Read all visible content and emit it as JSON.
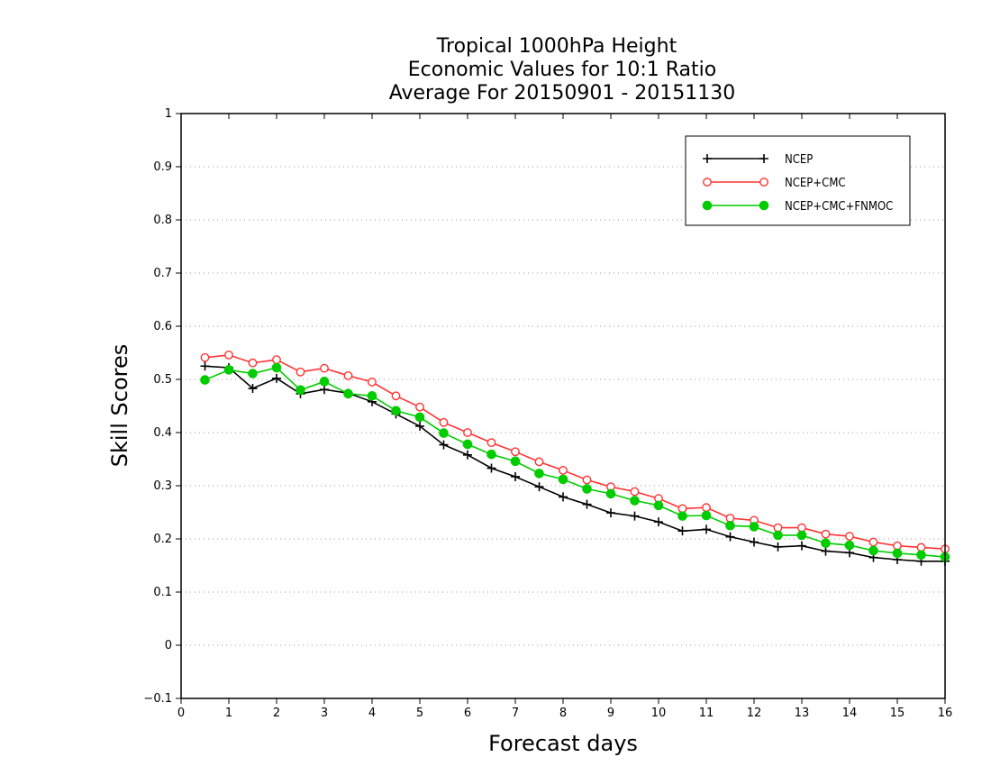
{
  "chart_data": {
    "type": "line",
    "title_lines": [
      "Tropical 1000hPa Height",
      "Economic Values for 10:1 Ratio",
      "Average For 20150901 - 20151130"
    ],
    "xlabel": "Forecast days",
    "ylabel": "Skill Scores",
    "xlim": [
      0,
      16
    ],
    "ylim": [
      -0.1,
      1
    ],
    "xticks": [
      "0",
      "1",
      "2",
      "3",
      "4",
      "5",
      "6",
      "7",
      "8",
      "9",
      "10",
      "11",
      "12",
      "13",
      "14",
      "15",
      "16"
    ],
    "yticks": [
      "-0.1",
      "0",
      "0.1",
      "0.2",
      "0.3",
      "0.4",
      "0.5",
      "0.6",
      "0.7",
      "0.8",
      "0.9",
      "1"
    ],
    "grid": "horizontal dotted",
    "legend_position": "top-right",
    "x": [
      0.5,
      1,
      1.5,
      2,
      2.5,
      3,
      3.5,
      4,
      4.5,
      5,
      5.5,
      6,
      6.5,
      7,
      7.5,
      8,
      8.5,
      9,
      9.5,
      10,
      10.5,
      11,
      11.5,
      12,
      12.5,
      13,
      13.5,
      14,
      14.5,
      15,
      15.5,
      16
    ],
    "series": [
      {
        "name": "NCEP",
        "color": "#000000",
        "marker": "plus",
        "values": [
          0.525,
          0.522,
          0.483,
          0.502,
          0.473,
          0.481,
          0.474,
          0.458,
          0.435,
          0.412,
          0.377,
          0.358,
          0.333,
          0.317,
          0.298,
          0.279,
          0.265,
          0.249,
          0.243,
          0.232,
          0.215,
          0.218,
          0.204,
          0.194,
          0.185,
          0.187,
          0.177,
          0.174,
          0.165,
          0.161,
          0.158,
          0.158
        ]
      },
      {
        "name": "NCEP+CMC",
        "color": "#ff3333",
        "marker": "open-circle",
        "values": [
          0.541,
          0.546,
          0.531,
          0.537,
          0.514,
          0.521,
          0.507,
          0.495,
          0.469,
          0.448,
          0.419,
          0.4,
          0.381,
          0.364,
          0.345,
          0.329,
          0.311,
          0.298,
          0.289,
          0.276,
          0.257,
          0.259,
          0.239,
          0.235,
          0.221,
          0.221,
          0.209,
          0.205,
          0.194,
          0.187,
          0.184,
          0.181
        ]
      },
      {
        "name": "NCEP+CMC+FNMOC",
        "color": "#00cc00",
        "marker": "filled-circle",
        "values": [
          0.499,
          0.518,
          0.511,
          0.522,
          0.48,
          0.496,
          0.473,
          0.469,
          0.441,
          0.429,
          0.399,
          0.378,
          0.359,
          0.346,
          0.323,
          0.312,
          0.294,
          0.285,
          0.272,
          0.263,
          0.243,
          0.244,
          0.225,
          0.223,
          0.207,
          0.207,
          0.192,
          0.188,
          0.178,
          0.173,
          0.17,
          0.166
        ]
      }
    ]
  }
}
